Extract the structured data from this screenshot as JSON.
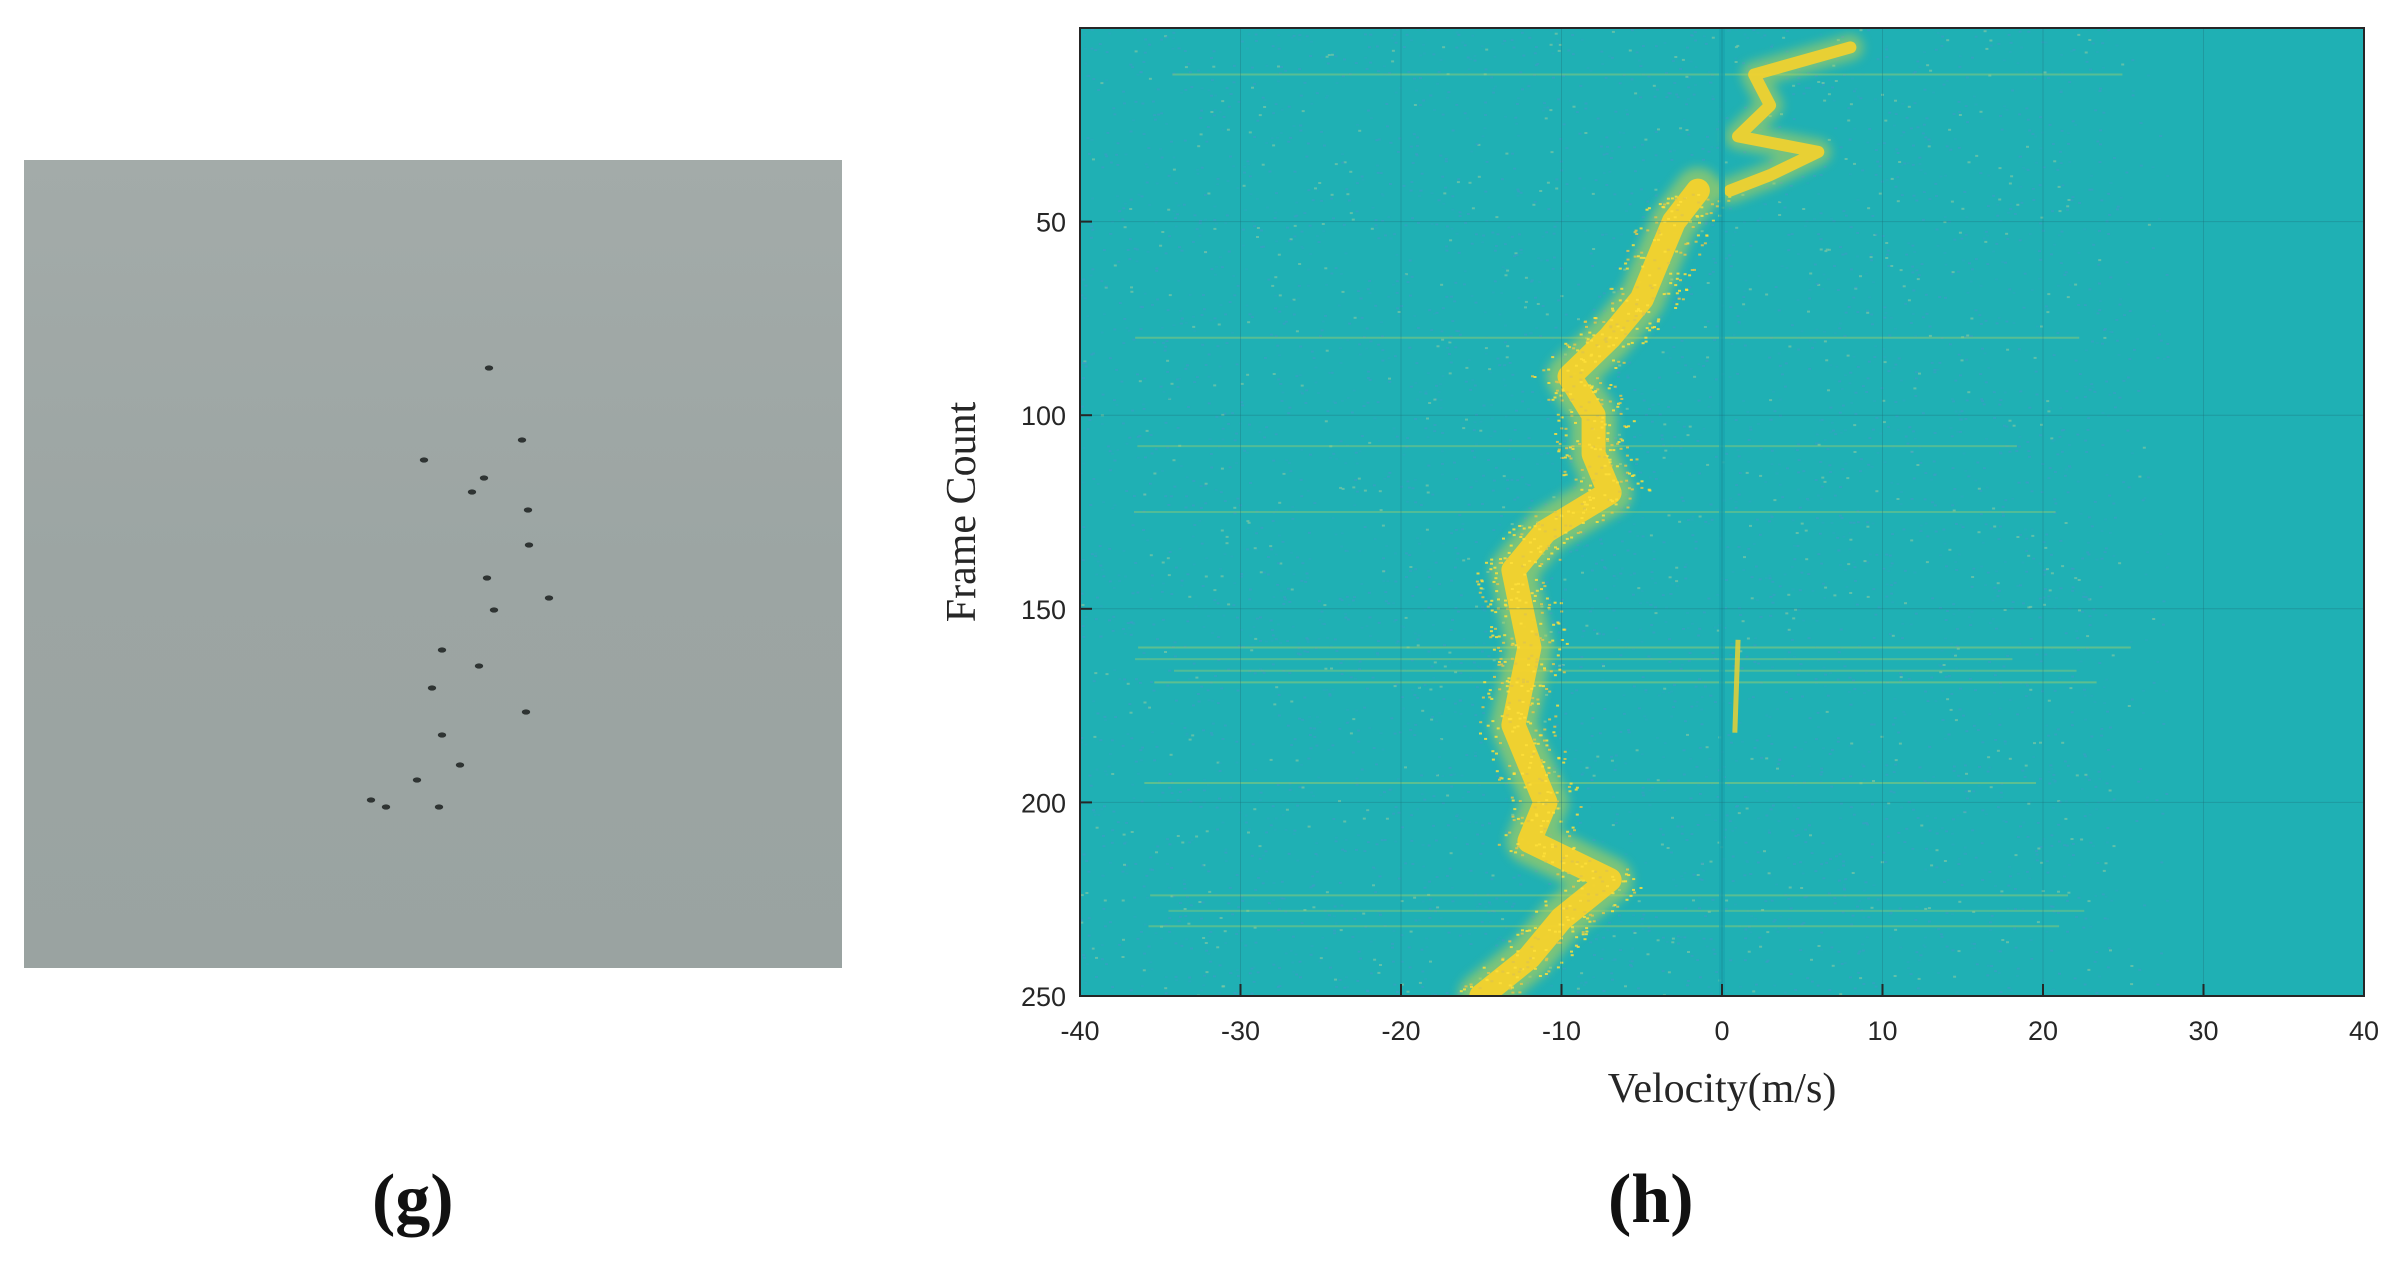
{
  "panels": {
    "left_label": "(g)",
    "right_label": "(h)"
  },
  "photo": {
    "sky_color": "#9ea6a4",
    "bird_color": "#2f3433",
    "bird_count": 20
  },
  "chart_data": {
    "type": "heatmap",
    "title": "",
    "xlabel": "Velocity(m/s)",
    "ylabel": "Frame Count",
    "xlim": [
      -40,
      40
    ],
    "ylim": [
      0,
      250
    ],
    "y_inverted": true,
    "xticks": [
      -40,
      -30,
      -20,
      -10,
      0,
      10,
      20,
      30,
      40
    ],
    "yticks": [
      50,
      100,
      150,
      200,
      250
    ],
    "grid": true,
    "colors": {
      "background": "#1fb0b4",
      "noise": "#3a9ec4",
      "signal": "#f5d22c",
      "signal_edge": "#c9d64a"
    },
    "bird_track": [
      {
        "frame": 42,
        "velocity": -1.5
      },
      {
        "frame": 50,
        "velocity": -3
      },
      {
        "frame": 60,
        "velocity": -4
      },
      {
        "frame": 70,
        "velocity": -5
      },
      {
        "frame": 80,
        "velocity": -7
      },
      {
        "frame": 90,
        "velocity": -9.5
      },
      {
        "frame": 100,
        "velocity": -8
      },
      {
        "frame": 110,
        "velocity": -8
      },
      {
        "frame": 120,
        "velocity": -7
      },
      {
        "frame": 130,
        "velocity": -11
      },
      {
        "frame": 140,
        "velocity": -13
      },
      {
        "frame": 150,
        "velocity": -12.5
      },
      {
        "frame": 160,
        "velocity": -12
      },
      {
        "frame": 170,
        "velocity": -12.5
      },
      {
        "frame": 180,
        "velocity": -13
      },
      {
        "frame": 190,
        "velocity": -12
      },
      {
        "frame": 200,
        "velocity": -11
      },
      {
        "frame": 210,
        "velocity": -12
      },
      {
        "frame": 220,
        "velocity": -7
      },
      {
        "frame": 230,
        "velocity": -10
      },
      {
        "frame": 240,
        "velocity": -12
      },
      {
        "frame": 250,
        "velocity": -15
      }
    ],
    "clutter_track": [
      {
        "frame": 5,
        "velocity": 8
      },
      {
        "frame": 12,
        "velocity": 2
      },
      {
        "frame": 20,
        "velocity": 3
      },
      {
        "frame": 28,
        "velocity": 1
      },
      {
        "frame": 32,
        "velocity": 6
      },
      {
        "frame": 38,
        "velocity": 3
      },
      {
        "frame": 42,
        "velocity": 0.5
      }
    ]
  }
}
